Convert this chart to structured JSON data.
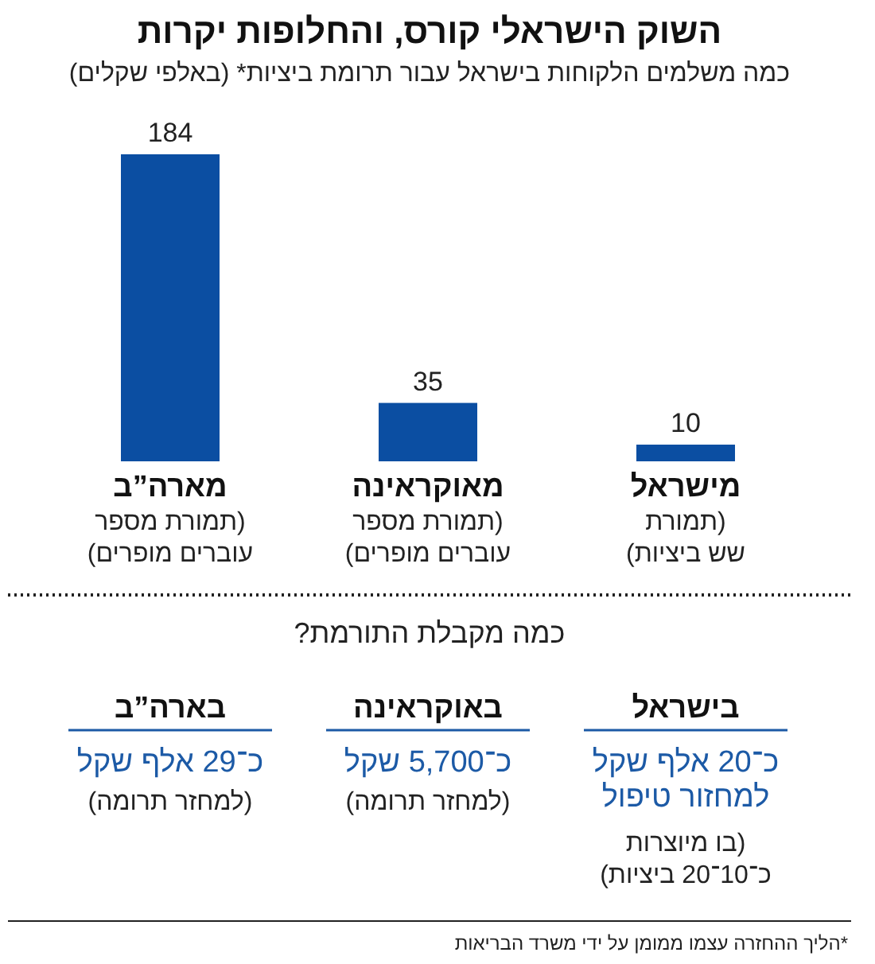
{
  "chart_data": [
    {
      "type": "bar",
      "title": "השוק הישראלי קורס, והחלופות יקרות",
      "subtitle": "כמה משלמים הלקוחות בישראל עבור תרומת ביציות* (באלפי שקלים)",
      "categories": [
        "מארה”ב\n(תמורת מספר\nעוברים מופרים)",
        "מאוקראינה\n(תמורת מספר\nעוברים מופרים)",
        "מישראל\n(תמורת\nשש ביציות)"
      ],
      "values": [
        184,
        35,
        10
      ],
      "color": "#0b4ea2",
      "data_labels": true
    },
    {
      "type": "other",
      "title": "כמה מקבלת התורמת?",
      "color": "#1c5aa6",
      "categories": [
        "בארה”ב",
        "באוקראינה",
        "בישראל"
      ],
      "annotations": [
        "כ־29 אלף שקל",
        "כ־5,700 שקל",
        "כ־20 אלף שקל\nלמחזור טיפול",
        "(למחזר תרומה)",
        "(למחזר תרומה)",
        "(בו מיוצרות\nכ־10־20 ביציות)",
        "*הליך ההחזרה עצמו ממומן על ידי משרד הבריאות"
      ]
    }
  ]
}
